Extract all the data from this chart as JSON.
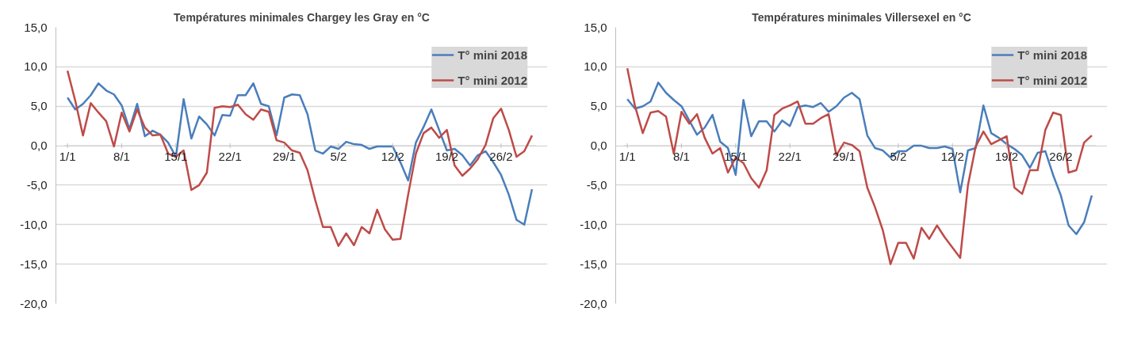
{
  "chart_data": [
    {
      "type": "line",
      "title": "Températures minimales Chargey les Gray en °C",
      "categories": [
        "1/1",
        null,
        null,
        null,
        null,
        null,
        null,
        "8/1",
        null,
        null,
        null,
        null,
        null,
        null,
        "15/1",
        null,
        null,
        null,
        null,
        null,
        null,
        "22/1",
        null,
        null,
        null,
        null,
        null,
        null,
        "29/1",
        null,
        null,
        null,
        null,
        null,
        null,
        "5/2",
        null,
        null,
        null,
        null,
        null,
        null,
        "12/2",
        null,
        null,
        null,
        null,
        null,
        null,
        "19/2",
        null,
        null,
        null,
        null,
        null,
        null,
        "26/2",
        null,
        null,
        null,
        null
      ],
      "ylim": [
        -20,
        15
      ],
      "yticks": [
        {
          "value": -20,
          "label": "-20,0"
        },
        {
          "value": -15,
          "label": "-15,0"
        },
        {
          "value": -10,
          "label": "-10,0"
        },
        {
          "value": -5,
          "label": "-5,0"
        },
        {
          "value": 0,
          "label": "0,0"
        },
        {
          "value": 5,
          "label": "5,0"
        },
        {
          "value": 10,
          "label": "10,0"
        },
        {
          "value": 15,
          "label": "15,0"
        }
      ],
      "grid": "y",
      "legend": "top right",
      "line_style": "solid",
      "series": [
        {
          "name": "T° mini 2018",
          "color": "#4a7ebb",
          "values": [
            6.1,
            4.6,
            5.3,
            6.4,
            7.9,
            7.0,
            6.5,
            5.1,
            2.1,
            5.3,
            1.2,
            1.9,
            1.4,
            0.4,
            -1.4,
            5.9,
            0.9,
            3.7,
            2.7,
            1.3,
            3.9,
            3.8,
            6.4,
            6.4,
            7.9,
            5.3,
            5.0,
            1.3,
            6.1,
            6.5,
            6.4,
            4.0,
            -0.6,
            -1.0,
            -0.1,
            -0.4,
            0.5,
            0.2,
            0.1,
            -0.4,
            -0.1,
            -0.1,
            -0.1,
            -2.1,
            -4.4,
            0.4,
            2.4,
            4.6,
            2.0,
            -0.6,
            -0.4,
            -1.2,
            -2.5,
            -1.2,
            -0.7,
            -2.1,
            -3.7,
            -6.2,
            -9.4,
            -10.0,
            -5.5
          ]
        },
        {
          "name": "T° mini 2012",
          "color": "#be4b48",
          "values": [
            9.5,
            5.7,
            1.3,
            5.4,
            4.2,
            3.1,
            -0.1,
            4.2,
            1.8,
            4.6,
            2.3,
            1.3,
            1.4,
            -1.0,
            -1.4,
            -0.6,
            -5.6,
            -5.0,
            -3.4,
            4.8,
            5.0,
            4.9,
            5.2,
            4.0,
            3.3,
            4.6,
            4.3,
            0.7,
            0.4,
            -0.6,
            -0.9,
            -3.1,
            -6.9,
            -10.3,
            -10.3,
            -12.7,
            -11.1,
            -12.6,
            -10.3,
            -11.1,
            -8.1,
            -10.6,
            -11.9,
            -11.8,
            -6.2,
            -1.0,
            1.6,
            2.3,
            1.0,
            2.0,
            -2.5,
            -3.8,
            -2.9,
            -1.7,
            0.1,
            3.5,
            4.7,
            2.0,
            -1.4,
            -0.7,
            1.3
          ]
        }
      ]
    },
    {
      "type": "line",
      "title": "Températures minimales Villersexel en °C",
      "categories": [
        "1/1",
        null,
        null,
        null,
        null,
        null,
        null,
        "8/1",
        null,
        null,
        null,
        null,
        null,
        null,
        "15/1",
        null,
        null,
        null,
        null,
        null,
        null,
        "22/1",
        null,
        null,
        null,
        null,
        null,
        null,
        "29/1",
        null,
        null,
        null,
        null,
        null,
        null,
        "5/2",
        null,
        null,
        null,
        null,
        null,
        null,
        "12/2",
        null,
        null,
        null,
        null,
        null,
        null,
        "19/2",
        null,
        null,
        null,
        null,
        null,
        null,
        "26/2",
        null,
        null,
        null,
        null
      ],
      "ylim": [
        -20,
        15
      ],
      "yticks": [
        {
          "value": -20,
          "label": "-20,0"
        },
        {
          "value": -15,
          "label": "-15,0"
        },
        {
          "value": -10,
          "label": "-10,0"
        },
        {
          "value": -5,
          "label": "-5,0"
        },
        {
          "value": 0,
          "label": "0,0"
        },
        {
          "value": 5,
          "label": "5,0"
        },
        {
          "value": 10,
          "label": "10,0"
        },
        {
          "value": 15,
          "label": "15,0"
        }
      ],
      "grid": "y",
      "legend": "top right",
      "line_style": "solid",
      "series": [
        {
          "name": "T° mini 2018",
          "color": "#4a7ebb",
          "values": [
            5.9,
            4.7,
            5.0,
            5.6,
            8.0,
            6.7,
            5.8,
            5.0,
            3.2,
            1.4,
            2.3,
            3.9,
            0.5,
            -0.3,
            -3.7,
            5.8,
            1.2,
            3.1,
            3.1,
            1.8,
            3.2,
            2.5,
            4.9,
            5.1,
            4.9,
            5.4,
            4.3,
            5.0,
            6.1,
            6.7,
            5.9,
            1.3,
            -0.3,
            -0.6,
            -1.5,
            -0.7,
            -0.7,
            0.0,
            0.0,
            -0.3,
            -0.3,
            -0.1,
            -0.4,
            -5.9,
            -0.6,
            -0.3,
            5.1,
            1.6,
            1.0,
            0.2,
            -0.4,
            -1.2,
            -2.8,
            -0.9,
            -0.7,
            -3.7,
            -6.3,
            -10.1,
            -11.2,
            -9.7,
            -6.3
          ]
        },
        {
          "name": "T° mini 2012",
          "color": "#be4b48",
          "values": [
            9.8,
            5.0,
            1.6,
            4.2,
            4.4,
            3.7,
            -1.0,
            4.3,
            2.8,
            4.0,
            1.0,
            -1.0,
            -0.3,
            -3.4,
            -1.5,
            -2.2,
            -4.1,
            -5.3,
            -3.1,
            3.9,
            4.7,
            5.1,
            5.6,
            2.8,
            2.8,
            3.5,
            4.0,
            -1.2,
            0.4,
            0.1,
            -0.7,
            -5.3,
            -7.8,
            -10.7,
            -15.0,
            -12.3,
            -12.3,
            -14.3,
            -10.4,
            -11.8,
            -10.1,
            -11.6,
            -12.9,
            -14.2,
            -5.0,
            -0.1,
            1.8,
            0.2,
            0.7,
            1.2,
            -5.3,
            -6.1,
            -3.1,
            -3.1,
            2.0,
            4.2,
            3.9,
            -3.4,
            -3.1,
            0.4,
            1.3
          ]
        }
      ]
    }
  ]
}
